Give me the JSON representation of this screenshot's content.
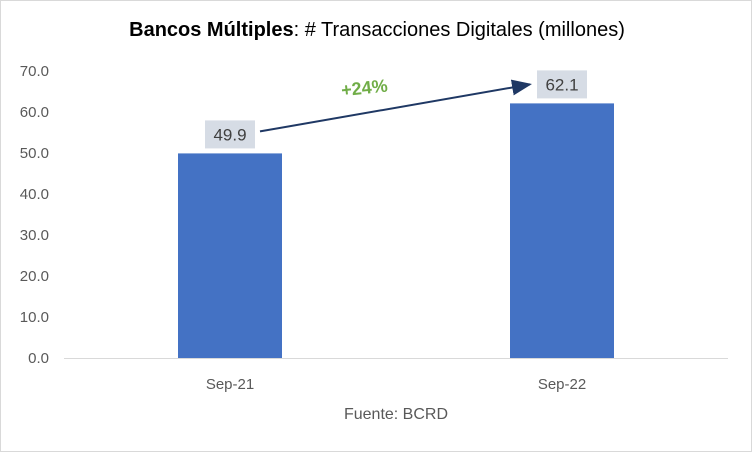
{
  "title_bold": "Bancos Múltiples",
  "title_rest": ": # Transacciones Digitales (millones)",
  "source": "Fuente: BCRD",
  "chart_data": {
    "type": "bar",
    "title": "Bancos Múltiples: # Transacciones Digitales (millones)",
    "categories": [
      "Sep-21",
      "Sep-22"
    ],
    "values": [
      49.9,
      62.1
    ],
    "value_labels": [
      "49.9",
      "62.1"
    ],
    "ylim": [
      0,
      70
    ],
    "yticks": [
      "0.0",
      "10.0",
      "20.0",
      "30.0",
      "40.0",
      "50.0",
      "60.0",
      "70.0"
    ],
    "grid": false,
    "annotation": "+24%",
    "bar_color": "#4472c4",
    "label_bg_color": "#d6dce5",
    "arrow_color": "#1f3864",
    "annotation_color": "#70ad47"
  }
}
